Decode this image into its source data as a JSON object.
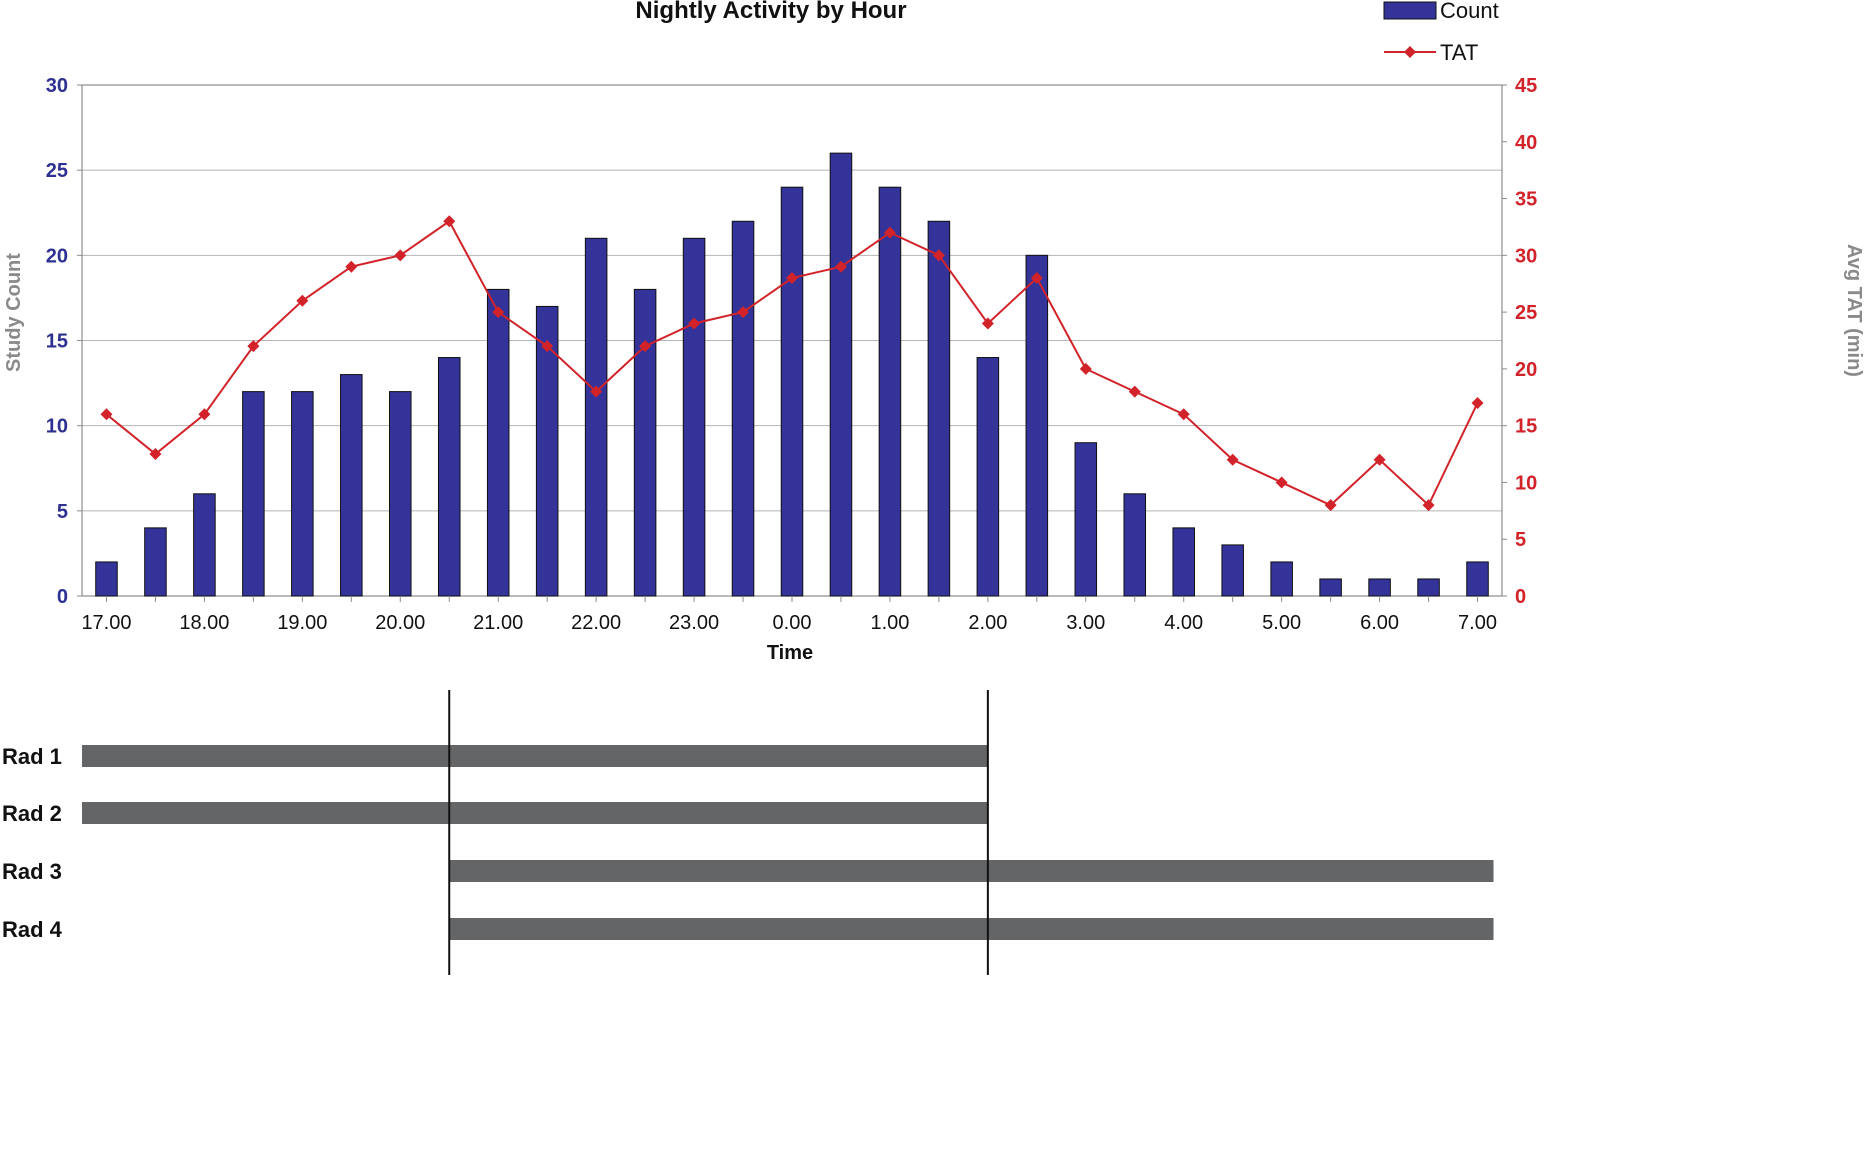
{
  "chart_data": {
    "type": "bar",
    "title": "Nightly Activity by Hour",
    "xlabel": "Time",
    "ylabel_left": "Study Count",
    "ylabel_right": "Avg TAT (min)",
    "ylim_left": [
      0,
      30
    ],
    "ylim_right": [
      0,
      45
    ],
    "yticks_left": [
      0,
      5,
      10,
      15,
      20,
      25,
      30
    ],
    "yticks_right": [
      0,
      5,
      10,
      15,
      20,
      25,
      30,
      35,
      40,
      45
    ],
    "x_tick_labels": [
      "17.00",
      "18.00",
      "19.00",
      "20.00",
      "21.00",
      "22.00",
      "23.00",
      "0.00",
      "1.00",
      "2.00",
      "3.00",
      "4.00",
      "5.00",
      "6.00",
      "7.00"
    ],
    "categories": [
      "17.00",
      "17.30",
      "18.00",
      "18.30",
      "19.00",
      "19.30",
      "20.00",
      "20.30",
      "21.00",
      "21.30",
      "22.00",
      "22.30",
      "23.00",
      "23.30",
      "0.00",
      "0.30",
      "1.00",
      "1.30",
      "2.00",
      "2.30",
      "3.00",
      "3.30",
      "4.00",
      "4.30",
      "5.00",
      "5.30",
      "6.00",
      "6.30",
      "7.00"
    ],
    "series": [
      {
        "name": "Count",
        "axis": "left",
        "kind": "bar",
        "color": "#333399",
        "values": [
          2,
          4,
          6,
          12,
          12,
          13,
          12,
          14,
          18,
          17,
          21,
          18,
          21,
          22,
          24,
          26,
          24,
          22,
          14,
          20,
          9,
          6,
          4,
          3,
          2,
          1,
          1,
          1,
          2
        ]
      },
      {
        "name": "TAT",
        "axis": "right",
        "kind": "line",
        "color": "#d2232a",
        "values": [
          16,
          12.5,
          16,
          22,
          26,
          29,
          30,
          33,
          25,
          22,
          18,
          22,
          24,
          25,
          28,
          29,
          32,
          30,
          24,
          28,
          20,
          18,
          16,
          12,
          10,
          8,
          12,
          8,
          17
        ]
      }
    ],
    "grid": true,
    "legend_position": "top-right"
  },
  "schedule": {
    "rows": [
      {
        "label": "Rad 1",
        "start": "17.00",
        "end": "2.00"
      },
      {
        "label": "Rad 2",
        "start": "17.00",
        "end": "2.00"
      },
      {
        "label": "Rad 3",
        "start": "20.30",
        "end": "7.00"
      },
      {
        "label": "Rad 4",
        "start": "20.30",
        "end": "7.00"
      }
    ],
    "markers": [
      "20.30",
      "2.00"
    ],
    "bar_color": "#646566"
  }
}
